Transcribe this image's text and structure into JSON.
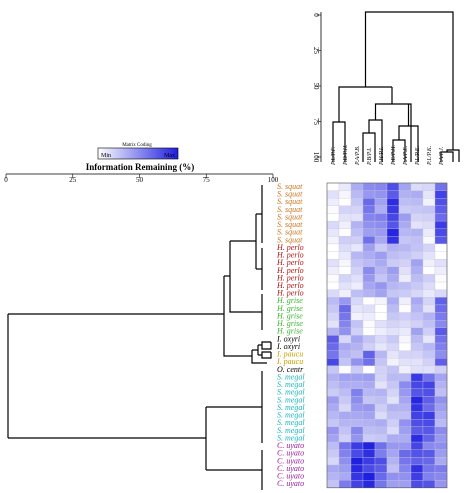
{
  "left_axis": {
    "title": "Information Remaining (%)",
    "ticks": [
      "0",
      "25",
      "50",
      "75",
      "100"
    ]
  },
  "top_axis": {
    "ticks": [
      "0",
      "25",
      "50",
      "75",
      "100"
    ]
  },
  "matrix_key": {
    "title": "Matrix Coding",
    "min_label": "Min",
    "max_label": "Max",
    "min_color": "#ffffff",
    "max_color": "#1f1fe0"
  },
  "columns": [
    "P.L/P.F.",
    "P.D/P.H.",
    "P.A/P.B.",
    "P.B/P.I.",
    "P.H/P.I.",
    "P.E/P.H.",
    "P.A/P.E.",
    "P.L/P.E.",
    "P.L/P.K.",
    "P.A/P.J."
  ],
  "row_groups": [
    {
      "label": "S. squat",
      "color": "#c8751e",
      "count": 8
    },
    {
      "label": "H. perlo",
      "color": "#b01414",
      "count": 7
    },
    {
      "label": "H. grise",
      "color": "#3bb82f",
      "count": 5
    },
    {
      "label": "I. oxyri",
      "color": "#000000",
      "count": 2
    },
    {
      "label": "I. paucu",
      "color": "#c8a000",
      "count": 2
    },
    {
      "label": "O. centr",
      "color": "#000000",
      "count": 1
    },
    {
      "label": "S. megal",
      "color": "#1fb5c0",
      "count": 9
    },
    {
      "label": "C. uyato",
      "color": "#9a1a9a",
      "count": 6
    }
  ]
}
